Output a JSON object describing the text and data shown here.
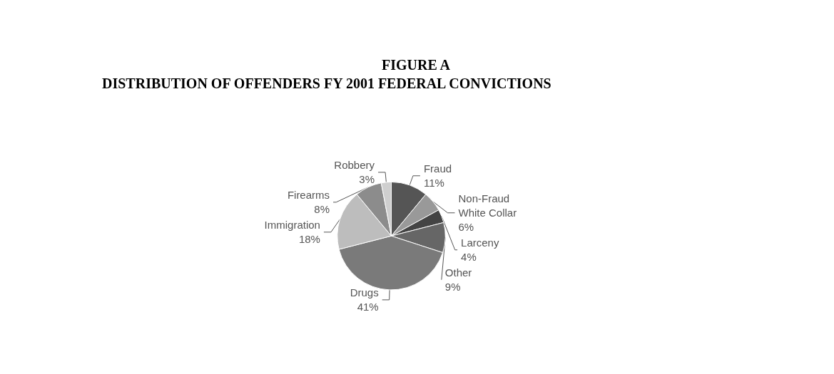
{
  "chart_data": {
    "type": "pie",
    "title": "FIGURE A",
    "subtitle": "DISTRIBUTION OF OFFENDERS FY 2001 FEDERAL CONVICTIONS",
    "categories": [
      "Fraud",
      "Non-Fraud\nWhite Collar",
      "Larceny",
      "Other",
      "Drugs",
      "Immigration",
      "Firearms",
      "Robbery"
    ],
    "values": [
      11,
      6,
      4,
      9,
      41,
      18,
      8,
      3
    ],
    "value_labels": [
      "11%",
      "6%",
      "4%",
      "9%",
      "41%",
      "18%",
      "8%",
      "3%"
    ],
    "colors": [
      "#555555",
      "#999999",
      "#444444",
      "#666666",
      "#7a7a7a",
      "#bdbdbd",
      "#8c8c8c",
      "#cfcfcf"
    ],
    "legend": false
  }
}
